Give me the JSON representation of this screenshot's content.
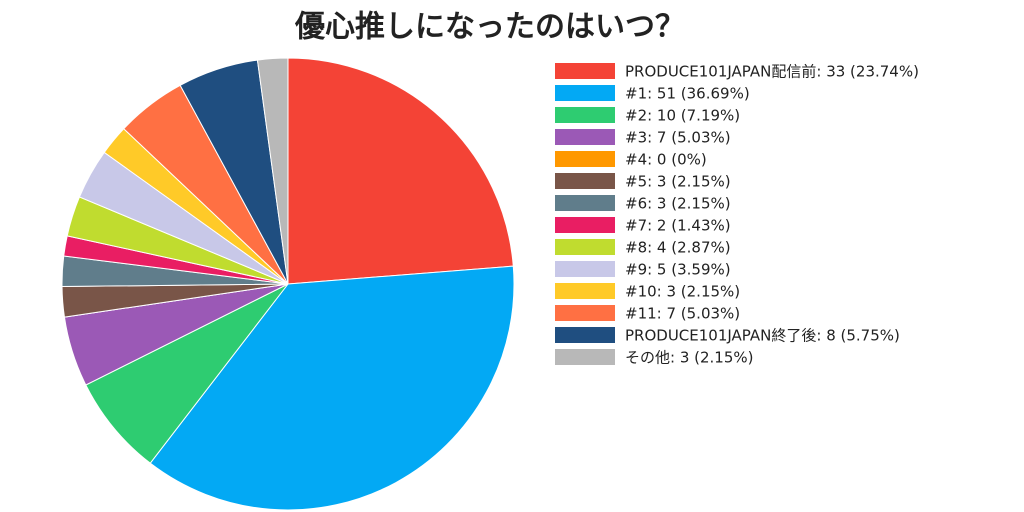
{
  "chart_data": {
    "type": "pie",
    "title": "優心推しになったのはいつ？",
    "categories": [
      "PRODUCE101JAPAN配信前: 33 (23.74%)",
      "#1: 51 (36.69%)",
      "#2: 10 (7.19%)",
      "#3: 7 (5.03%)",
      "#4: 0 (0%)",
      "#5: 3 (2.15%)",
      "#6: 3 (2.15%)",
      "#7: 2 (1.43%)",
      "#8: 4 (2.87%)",
      "#9: 5 (3.59%)",
      "#10: 3 (2.15%)",
      "#11: 7 (5.03%)",
      "PRODUCE101JAPAN終了後: 8 (5.75%)",
      "その他: 3 (2.15%)"
    ],
    "values": [
      33,
      51,
      10,
      7,
      0,
      3,
      3,
      2,
      4,
      5,
      3,
      7,
      8,
      3
    ],
    "colors": [
      "#f44336",
      "#03a9f4",
      "#2ecc71",
      "#9b59b6",
      "#ff9800",
      "#795548",
      "#607d8b",
      "#e91e63",
      "#c0dc2f",
      "#c8c8e8",
      "#ffca28",
      "#ff7043",
      "#1f4e80",
      "#b8b8b8"
    ],
    "legend": "right"
  }
}
